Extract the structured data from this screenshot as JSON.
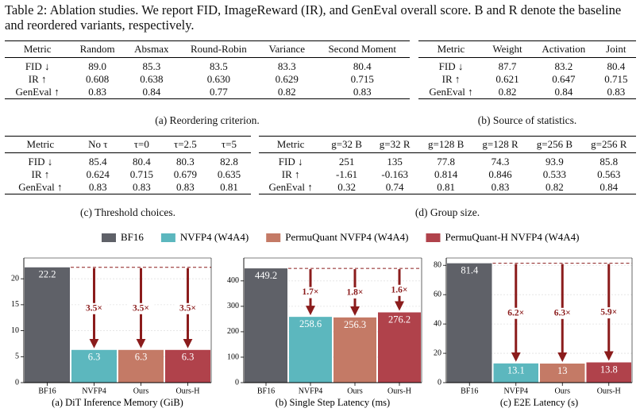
{
  "caption": "Table 2: Ablation studies. We report FID, ImageReward (IR), and GenEval overall score. B and R denote the baseline and reordered variants, respectively.",
  "tables": [
    {
      "header": [
        "Metric",
        "Random",
        "Absmax",
        "Round-Robin",
        "Variance",
        "Second Moment"
      ],
      "rows": [
        [
          "FID ↓",
          "89.0",
          "85.3",
          "83.5",
          "83.3",
          "80.4"
        ],
        [
          "IR ↑",
          "0.608",
          "0.638",
          "0.630",
          "0.629",
          "0.715"
        ],
        [
          "GenEval ↑",
          "0.83",
          "0.84",
          "0.77",
          "0.82",
          "0.83"
        ]
      ],
      "caption": "(a) Reordering criterion."
    },
    {
      "header": [
        "Metric",
        "Weight",
        "Activation",
        "Joint"
      ],
      "rows": [
        [
          "FID ↓",
          "87.7",
          "83.2",
          "80.4"
        ],
        [
          "IR ↑",
          "0.621",
          "0.647",
          "0.715"
        ],
        [
          "GenEval ↑",
          "0.82",
          "0.84",
          "0.83"
        ]
      ],
      "caption": "(b) Source of statistics."
    },
    {
      "header": [
        "Metric",
        "No τ",
        "τ=0",
        "τ=2.5",
        "τ=5"
      ],
      "rows": [
        [
          "FID ↓",
          "85.4",
          "80.4",
          "80.3",
          "82.8"
        ],
        [
          "IR ↑",
          "0.624",
          "0.715",
          "0.679",
          "0.635"
        ],
        [
          "GenEval ↑",
          "0.83",
          "0.83",
          "0.83",
          "0.81"
        ]
      ],
      "caption": "(c) Threshold choices."
    },
    {
      "header": [
        "Metric",
        "g=32 B",
        "g=32 R",
        "g=128 B",
        "g=128 R",
        "g=256 B",
        "g=256 R"
      ],
      "rows": [
        [
          "FID ↓",
          "251",
          "135",
          "77.8",
          "74.3",
          "93.9",
          "85.8"
        ],
        [
          "IR ↑",
          "-1.61",
          "-0.163",
          "0.814",
          "0.846",
          "0.533",
          "0.563"
        ],
        [
          "GenEval ↑",
          "0.32",
          "0.74",
          "0.81",
          "0.83",
          "0.82",
          "0.84"
        ]
      ],
      "caption": "(d) Group size."
    }
  ],
  "legend": [
    {
      "name": "BF16",
      "color": "#5f6168"
    },
    {
      "name": "NVFP4 (W4A4)",
      "color": "#5cb7be"
    },
    {
      "name": "PermuQuant NVFP4 (W4A4)",
      "color": "#c47a66"
    },
    {
      "name": "PermuQuant-H NVFP4 (W4A4)",
      "color": "#b0424b"
    }
  ],
  "chart_data": [
    {
      "type": "bar",
      "title": "(a) DiT Inference Memory (GiB)",
      "categories": [
        "BF16",
        "NVFP4",
        "Ours",
        "Ours-H"
      ],
      "values": [
        22.2,
        6.3,
        6.3,
        6.3
      ],
      "annotations": [
        "3.5×",
        "3.5×",
        "3.5×"
      ],
      "ylim": [
        0,
        24
      ],
      "yticks": [
        0,
        5,
        10,
        15,
        20
      ],
      "grid": true
    },
    {
      "type": "bar",
      "title": "(b) Single Step Latency (ms)",
      "categories": [
        "BF16",
        "NVFP4",
        "Ours",
        "Ours-H"
      ],
      "values": [
        449.2,
        258.6,
        256.3,
        276.2
      ],
      "annotations": [
        "1.7×",
        "1.8×",
        "1.6×"
      ],
      "ylim": [
        0,
        490
      ],
      "yticks": [
        0,
        100,
        200,
        300,
        400
      ],
      "grid": true
    },
    {
      "type": "bar",
      "title": "(c) E2E Latency (s)",
      "categories": [
        "BF16",
        "NVFP4",
        "Ours",
        "Ours-H"
      ],
      "values": [
        81.4,
        13.1,
        13.0,
        13.8
      ],
      "annotations": [
        "6.2×",
        "6.3×",
        "5.9×"
      ],
      "ylim": [
        0,
        85
      ],
      "yticks": [
        0,
        20,
        40,
        60,
        80
      ],
      "grid": true
    }
  ]
}
